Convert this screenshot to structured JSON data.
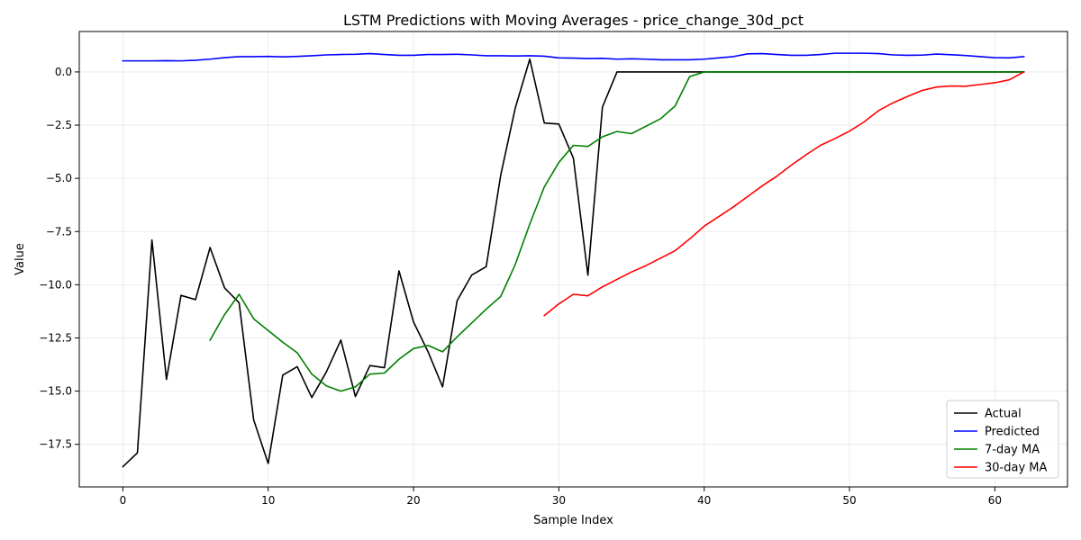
{
  "chart_data": {
    "type": "line",
    "title": "LSTM Predictions with Moving Averages - price_change_30d_pct",
    "xlabel": "Sample Index",
    "ylabel": "Value",
    "xlim": [
      -3,
      65
    ],
    "ylim": [
      -19.5,
      1.9
    ],
    "xticks": [
      0,
      10,
      20,
      30,
      40,
      50,
      60
    ],
    "yticks": [
      0.0,
      -2.5,
      -5.0,
      -7.5,
      -10.0,
      -12.5,
      -15.0,
      -17.5
    ],
    "ytick_labels": [
      "0.0",
      "−2.5",
      "−5.0",
      "−7.5",
      "−10.0",
      "−12.5",
      "−15.0",
      "−17.5"
    ],
    "grid": true,
    "legend_position": "bottom-right",
    "series": [
      {
        "name": "Actual",
        "color": "#000000",
        "x": [
          0,
          1,
          2,
          3,
          4,
          5,
          6,
          7,
          8,
          9,
          10,
          11,
          12,
          13,
          14,
          15,
          16,
          17,
          18,
          19,
          20,
          21,
          22,
          23,
          24,
          25,
          26,
          27,
          28,
          29,
          30,
          31,
          32,
          33,
          34,
          35,
          36,
          37,
          38,
          39,
          40,
          41,
          42,
          43,
          44,
          45,
          46,
          47,
          48,
          49,
          50,
          51,
          52,
          53,
          54,
          55,
          56,
          57,
          58,
          59,
          60,
          61,
          62
        ],
        "y": [
          -18.55,
          -17.9,
          -7.9,
          -14.45,
          -10.5,
          -10.7,
          -8.25,
          -10.15,
          -10.85,
          -16.35,
          -18.4,
          -14.25,
          -13.85,
          -15.3,
          -14.1,
          -12.6,
          -15.25,
          -13.8,
          -13.9,
          -9.35,
          -11.75,
          -13.15,
          -14.8,
          -10.75,
          -9.55,
          -9.15,
          -4.85,
          -1.7,
          0.6,
          -2.4,
          -2.45,
          -4.05,
          -9.55,
          -1.65,
          0.0,
          0.0,
          0.0,
          0.0,
          0.0,
          0.0,
          0.0,
          0.0,
          0.0,
          0.0,
          0.0,
          0.0,
          0.0,
          0.0,
          0.0,
          0.0,
          0.0,
          0.0,
          0.0,
          0.0,
          0.0,
          0.0,
          0.0,
          0.0,
          0.0,
          0.0,
          0.0,
          0.0,
          0.0
        ]
      },
      {
        "name": "Predicted",
        "color": "#0000ff",
        "x": [
          0,
          1,
          2,
          3,
          4,
          5,
          6,
          7,
          8,
          9,
          10,
          11,
          12,
          13,
          14,
          15,
          16,
          17,
          18,
          19,
          20,
          21,
          22,
          23,
          24,
          25,
          26,
          27,
          28,
          29,
          30,
          31,
          32,
          33,
          34,
          35,
          36,
          37,
          38,
          39,
          40,
          41,
          42,
          43,
          44,
          45,
          46,
          47,
          48,
          49,
          50,
          51,
          52,
          53,
          54,
          55,
          56,
          57,
          58,
          59,
          60,
          61,
          62
        ],
        "y": [
          0.52,
          0.52,
          0.52,
          0.53,
          0.52,
          0.55,
          0.6,
          0.67,
          0.72,
          0.72,
          0.73,
          0.71,
          0.73,
          0.76,
          0.8,
          0.82,
          0.83,
          0.86,
          0.82,
          0.78,
          0.78,
          0.82,
          0.82,
          0.83,
          0.8,
          0.76,
          0.76,
          0.75,
          0.76,
          0.74,
          0.66,
          0.65,
          0.63,
          0.64,
          0.6,
          0.62,
          0.6,
          0.57,
          0.57,
          0.57,
          0.6,
          0.66,
          0.72,
          0.85,
          0.86,
          0.82,
          0.78,
          0.78,
          0.82,
          0.88,
          0.88,
          0.88,
          0.86,
          0.8,
          0.78,
          0.79,
          0.84,
          0.81,
          0.77,
          0.72,
          0.67,
          0.66,
          0.72
        ]
      },
      {
        "name": "7-day MA",
        "color": "#008000",
        "x": [
          6,
          7,
          8,
          9,
          10,
          11,
          12,
          13,
          14,
          15,
          16,
          17,
          18,
          19,
          20,
          21,
          22,
          23,
          24,
          25,
          26,
          27,
          28,
          29,
          30,
          31,
          32,
          33,
          34,
          35,
          36,
          37,
          38,
          39,
          40,
          41,
          42,
          43,
          44,
          45,
          46,
          47,
          48,
          49,
          50,
          51,
          52,
          53,
          54,
          55,
          56,
          57,
          58,
          59,
          60,
          61,
          62
        ],
        "y": [
          -12.6,
          -11.4,
          -10.45,
          -11.6,
          -12.15,
          -12.7,
          -13.2,
          -14.2,
          -14.75,
          -15.0,
          -14.8,
          -14.2,
          -14.15,
          -13.5,
          -13.0,
          -12.85,
          -13.15,
          -12.45,
          -11.8,
          -11.15,
          -10.55,
          -9.05,
          -7.15,
          -5.4,
          -4.25,
          -3.45,
          -3.5,
          -3.05,
          -2.8,
          -2.9,
          -2.55,
          -2.2,
          -1.6,
          -0.22,
          0.0,
          0.0,
          0.0,
          0.0,
          0.0,
          0.0,
          0.0,
          0.0,
          0.0,
          0.0,
          0.0,
          0.0,
          0.0,
          0.0,
          0.0,
          0.0,
          0.0,
          0.0,
          0.0,
          0.0,
          0.0,
          0.0,
          0.0
        ]
      },
      {
        "name": "30-day MA",
        "color": "#ff0000",
        "x": [
          29,
          30,
          31,
          32,
          33,
          34,
          35,
          36,
          37,
          38,
          39,
          40,
          41,
          42,
          43,
          44,
          45,
          46,
          47,
          48,
          49,
          50,
          51,
          52,
          53,
          54,
          55,
          56,
          57,
          58,
          59,
          60,
          61,
          62
        ],
        "y": [
          -11.45,
          -10.9,
          -10.45,
          -10.52,
          -10.1,
          -9.75,
          -9.4,
          -9.1,
          -8.75,
          -8.4,
          -7.85,
          -7.25,
          -6.8,
          -6.35,
          -5.85,
          -5.35,
          -4.9,
          -4.38,
          -3.9,
          -3.45,
          -3.13,
          -2.78,
          -2.35,
          -1.82,
          -1.45,
          -1.15,
          -0.87,
          -0.71,
          -0.66,
          -0.67,
          -0.59,
          -0.51,
          -0.37,
          0.0
        ]
      }
    ]
  }
}
